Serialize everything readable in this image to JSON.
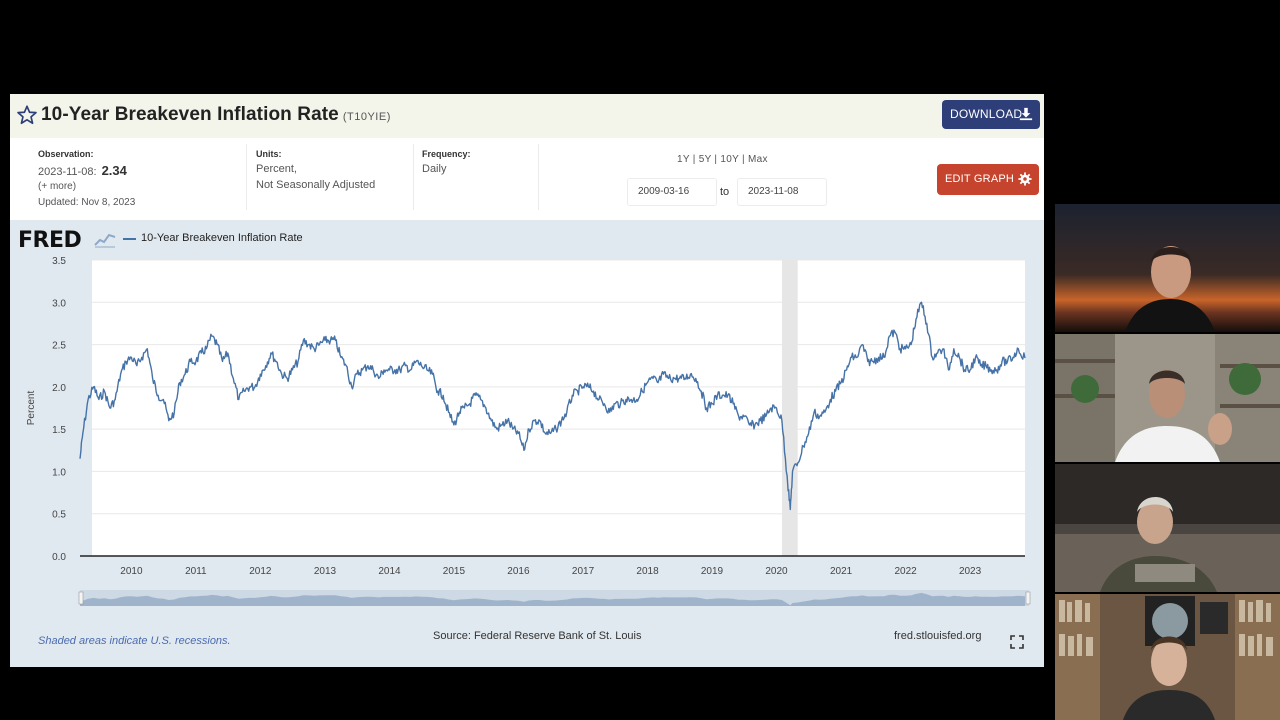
{
  "fred": {
    "title": "10-Year Breakeven Inflation Rate",
    "series_id": "(T10YIE)",
    "download_label": "DOWNLOAD",
    "observation": {
      "label": "Observation:",
      "date": "2023-11-08:",
      "value": "2.34",
      "more": "(+ more)",
      "updated": "Updated: Nov 8, 2023"
    },
    "units": {
      "label": "Units:",
      "line1": "Percent,",
      "line2": "Not Seasonally Adjusted"
    },
    "frequency": {
      "label": "Frequency:",
      "value": "Daily"
    },
    "range_links": "1Y | 5Y | 10Y | Max",
    "date_start": "2009-03-16",
    "date_to": "to",
    "date_end": "2023-11-08",
    "edit_graph_label": "EDIT GRAPH",
    "logo": "FRED",
    "legend": "10-Year Breakeven Inflation Rate",
    "footnote": "Shaded areas indicate U.S. recessions.",
    "source": "Source: Federal Reserve Bank of St. Louis",
    "site": "fred.stlouisfed.org",
    "colors": {
      "line": "#4572a7",
      "accent_download": "#2d3e78",
      "accent_edit": "#c6442d",
      "recession": "#e6e6e6"
    }
  },
  "chart_data": {
    "type": "line",
    "ylabel": "Percent",
    "ylim": [
      0,
      3.5
    ],
    "yticks": [
      "0.0",
      "0.5",
      "1.0",
      "1.5",
      "2.0",
      "2.5",
      "3.0",
      "3.5"
    ],
    "xticks": [
      "2010",
      "2011",
      "2012",
      "2013",
      "2014",
      "2015",
      "2016",
      "2017",
      "2018",
      "2019",
      "2020",
      "2021",
      "2022",
      "2023"
    ],
    "xlim": [
      "2009-03-16",
      "2023-11-08"
    ],
    "recession": [
      "2020-02-01",
      "2020-04-30"
    ],
    "series": [
      {
        "points": [
          [
            "2009-03-16",
            1.15
          ],
          [
            "2009-04-01",
            1.45
          ],
          [
            "2009-05-01",
            1.85
          ],
          [
            "2009-06-01",
            2.0
          ],
          [
            "2009-07-01",
            1.85
          ],
          [
            "2009-08-01",
            1.95
          ],
          [
            "2009-09-01",
            1.75
          ],
          [
            "2009-10-01",
            1.85
          ],
          [
            "2009-11-01",
            2.15
          ],
          [
            "2009-12-01",
            2.3
          ],
          [
            "2010-01-01",
            2.35
          ],
          [
            "2010-02-01",
            2.25
          ],
          [
            "2010-03-01",
            2.35
          ],
          [
            "2010-04-01",
            2.45
          ],
          [
            "2010-05-01",
            2.1
          ],
          [
            "2010-06-01",
            1.9
          ],
          [
            "2010-07-01",
            1.85
          ],
          [
            "2010-08-01",
            1.6
          ],
          [
            "2010-09-01",
            1.7
          ],
          [
            "2010-10-01",
            2.05
          ],
          [
            "2010-11-01",
            2.15
          ],
          [
            "2010-12-01",
            2.3
          ],
          [
            "2011-01-01",
            2.3
          ],
          [
            "2011-02-01",
            2.4
          ],
          [
            "2011-03-01",
            2.45
          ],
          [
            "2011-04-01",
            2.6
          ],
          [
            "2011-05-01",
            2.5
          ],
          [
            "2011-06-01",
            2.3
          ],
          [
            "2011-07-01",
            2.4
          ],
          [
            "2011-08-01",
            2.1
          ],
          [
            "2011-09-01",
            1.85
          ],
          [
            "2011-10-01",
            1.95
          ],
          [
            "2011-11-01",
            2.0
          ],
          [
            "2011-12-01",
            2.0
          ],
          [
            "2012-01-01",
            2.15
          ],
          [
            "2012-02-01",
            2.25
          ],
          [
            "2012-03-01",
            2.4
          ],
          [
            "2012-04-01",
            2.3
          ],
          [
            "2012-05-01",
            2.15
          ],
          [
            "2012-06-01",
            2.1
          ],
          [
            "2012-07-01",
            2.2
          ],
          [
            "2012-08-01",
            2.3
          ],
          [
            "2012-09-01",
            2.55
          ],
          [
            "2012-10-01",
            2.5
          ],
          [
            "2012-11-01",
            2.45
          ],
          [
            "2012-12-01",
            2.5
          ],
          [
            "2013-01-01",
            2.55
          ],
          [
            "2013-02-01",
            2.55
          ],
          [
            "2013-03-01",
            2.55
          ],
          [
            "2013-04-01",
            2.35
          ],
          [
            "2013-05-01",
            2.25
          ],
          [
            "2013-06-01",
            2.0
          ],
          [
            "2013-07-01",
            2.15
          ],
          [
            "2013-08-01",
            2.2
          ],
          [
            "2013-09-01",
            2.25
          ],
          [
            "2013-10-01",
            2.2
          ],
          [
            "2013-11-01",
            2.1
          ],
          [
            "2013-12-01",
            2.2
          ],
          [
            "2014-01-01",
            2.2
          ],
          [
            "2014-02-01",
            2.2
          ],
          [
            "2014-03-01",
            2.2
          ],
          [
            "2014-04-01",
            2.25
          ],
          [
            "2014-05-01",
            2.2
          ],
          [
            "2014-06-01",
            2.3
          ],
          [
            "2014-07-01",
            2.25
          ],
          [
            "2014-08-01",
            2.2
          ],
          [
            "2014-09-01",
            2.15
          ],
          [
            "2014-10-01",
            1.95
          ],
          [
            "2014-11-01",
            1.9
          ],
          [
            "2014-12-01",
            1.7
          ],
          [
            "2015-01-01",
            1.55
          ],
          [
            "2015-02-01",
            1.7
          ],
          [
            "2015-03-01",
            1.75
          ],
          [
            "2015-04-01",
            1.8
          ],
          [
            "2015-05-01",
            1.9
          ],
          [
            "2015-06-01",
            1.85
          ],
          [
            "2015-07-01",
            1.75
          ],
          [
            "2015-08-01",
            1.6
          ],
          [
            "2015-09-01",
            1.5
          ],
          [
            "2015-10-01",
            1.55
          ],
          [
            "2015-11-01",
            1.6
          ],
          [
            "2015-12-01",
            1.5
          ],
          [
            "2016-01-01",
            1.45
          ],
          [
            "2016-02-01",
            1.25
          ],
          [
            "2016-03-01",
            1.5
          ],
          [
            "2016-04-01",
            1.6
          ],
          [
            "2016-05-01",
            1.6
          ],
          [
            "2016-06-01",
            1.45
          ],
          [
            "2016-07-01",
            1.45
          ],
          [
            "2016-08-01",
            1.5
          ],
          [
            "2016-09-01",
            1.6
          ],
          [
            "2016-10-01",
            1.7
          ],
          [
            "2016-11-01",
            1.9
          ],
          [
            "2016-12-01",
            1.95
          ],
          [
            "2017-01-01",
            2.0
          ],
          [
            "2017-02-01",
            2.0
          ],
          [
            "2017-03-01",
            1.95
          ],
          [
            "2017-04-01",
            1.85
          ],
          [
            "2017-05-01",
            1.8
          ],
          [
            "2017-06-01",
            1.7
          ],
          [
            "2017-07-01",
            1.8
          ],
          [
            "2017-08-01",
            1.8
          ],
          [
            "2017-09-01",
            1.85
          ],
          [
            "2017-10-01",
            1.85
          ],
          [
            "2017-11-01",
            1.85
          ],
          [
            "2017-12-01",
            1.95
          ],
          [
            "2018-01-01",
            2.05
          ],
          [
            "2018-02-01",
            2.1
          ],
          [
            "2018-03-01",
            2.05
          ],
          [
            "2018-04-01",
            2.15
          ],
          [
            "2018-05-01",
            2.1
          ],
          [
            "2018-06-01",
            2.1
          ],
          [
            "2018-07-01",
            2.1
          ],
          [
            "2018-08-01",
            2.1
          ],
          [
            "2018-09-01",
            2.15
          ],
          [
            "2018-10-01",
            2.1
          ],
          [
            "2018-11-01",
            1.95
          ],
          [
            "2018-12-01",
            1.75
          ],
          [
            "2019-01-01",
            1.8
          ],
          [
            "2019-02-01",
            1.9
          ],
          [
            "2019-03-01",
            1.9
          ],
          [
            "2019-04-01",
            1.9
          ],
          [
            "2019-05-01",
            1.8
          ],
          [
            "2019-06-01",
            1.65
          ],
          [
            "2019-07-01",
            1.65
          ],
          [
            "2019-08-01",
            1.55
          ],
          [
            "2019-09-01",
            1.55
          ],
          [
            "2019-10-01",
            1.6
          ],
          [
            "2019-11-01",
            1.65
          ],
          [
            "2019-12-01",
            1.75
          ],
          [
            "2020-01-01",
            1.75
          ],
          [
            "2020-02-01",
            1.6
          ],
          [
            "2020-03-01",
            0.95
          ],
          [
            "2020-03-19",
            0.55
          ],
          [
            "2020-04-01",
            1.0
          ],
          [
            "2020-05-01",
            1.1
          ],
          [
            "2020-06-01",
            1.3
          ],
          [
            "2020-07-01",
            1.45
          ],
          [
            "2020-08-01",
            1.7
          ],
          [
            "2020-09-01",
            1.65
          ],
          [
            "2020-10-01",
            1.7
          ],
          [
            "2020-11-01",
            1.85
          ],
          [
            "2020-12-01",
            1.95
          ],
          [
            "2021-01-01",
            2.05
          ],
          [
            "2021-02-01",
            2.2
          ],
          [
            "2021-03-01",
            2.35
          ],
          [
            "2021-04-01",
            2.35
          ],
          [
            "2021-05-01",
            2.5
          ],
          [
            "2021-06-01",
            2.3
          ],
          [
            "2021-07-01",
            2.3
          ],
          [
            "2021-08-01",
            2.35
          ],
          [
            "2021-09-01",
            2.35
          ],
          [
            "2021-10-01",
            2.6
          ],
          [
            "2021-11-01",
            2.65
          ],
          [
            "2021-12-01",
            2.45
          ],
          [
            "2022-01-01",
            2.45
          ],
          [
            "2022-02-01",
            2.5
          ],
          [
            "2022-03-01",
            2.8
          ],
          [
            "2022-04-01",
            3.0
          ],
          [
            "2022-05-01",
            2.75
          ],
          [
            "2022-06-01",
            2.35
          ],
          [
            "2022-07-01",
            2.4
          ],
          [
            "2022-08-01",
            2.45
          ],
          [
            "2022-09-01",
            2.2
          ],
          [
            "2022-10-01",
            2.45
          ],
          [
            "2022-11-01",
            2.35
          ],
          [
            "2022-12-01",
            2.2
          ],
          [
            "2023-01-01",
            2.2
          ],
          [
            "2023-02-01",
            2.35
          ],
          [
            "2023-03-01",
            2.25
          ],
          [
            "2023-04-01",
            2.25
          ],
          [
            "2023-05-01",
            2.2
          ],
          [
            "2023-06-01",
            2.2
          ],
          [
            "2023-07-01",
            2.3
          ],
          [
            "2023-08-01",
            2.3
          ],
          [
            "2023-09-01",
            2.35
          ],
          [
            "2023-10-01",
            2.45
          ],
          [
            "2023-11-08",
            2.34
          ]
        ]
      }
    ]
  },
  "video_tiles": [
    {
      "role": "participant-1"
    },
    {
      "role": "participant-2"
    },
    {
      "role": "participant-3"
    },
    {
      "role": "participant-4"
    }
  ]
}
